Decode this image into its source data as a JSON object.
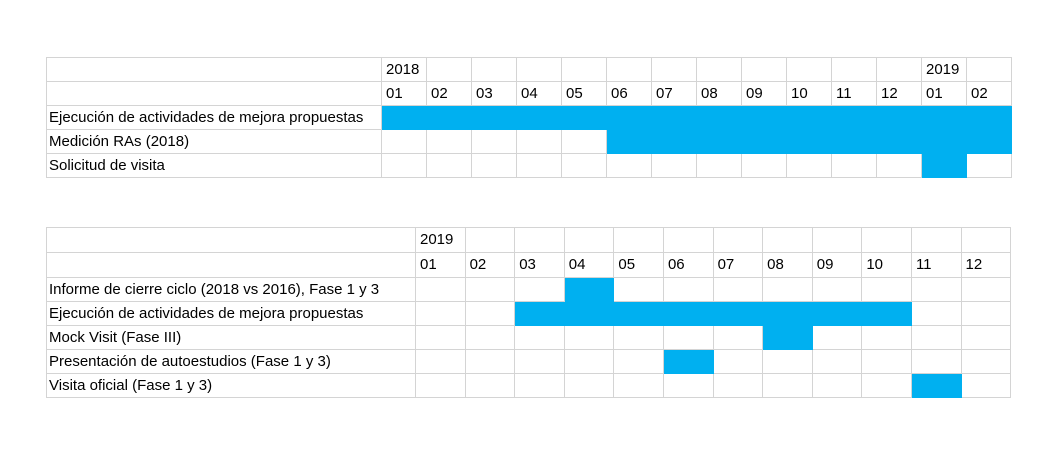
{
  "colors": {
    "bar": "#00b0f0",
    "grid": "#d4d4d4"
  },
  "chart_data": [
    {
      "type": "table",
      "years": [
        {
          "label": "2018",
          "col": 0
        },
        {
          "label": "2019",
          "col": 12
        }
      ],
      "months": [
        "01",
        "02",
        "03",
        "04",
        "05",
        "06",
        "07",
        "08",
        "09",
        "10",
        "11",
        "12",
        "01",
        "02"
      ],
      "tasks": [
        {
          "name": "Ejecución de actividades de mejora propuestas",
          "start": 0,
          "end": 13
        },
        {
          "name": "Medición RAs (2018)",
          "start": 5,
          "end": 13
        },
        {
          "name": "Solicitud de visita",
          "start": 12,
          "end": 12
        }
      ]
    },
    {
      "type": "table",
      "years": [
        {
          "label": "2019",
          "col": 0
        }
      ],
      "months": [
        "01",
        "02",
        "03",
        "04",
        "05",
        "06",
        "07",
        "08",
        "09",
        "10",
        "11",
        "12"
      ],
      "tasks": [
        {
          "name": "Informe de cierre ciclo (2018 vs 2016), Fase 1 y 3",
          "start": 3,
          "end": 3
        },
        {
          "name": "Ejecución de actividades de mejora propuestas",
          "start": 2,
          "end": 9
        },
        {
          "name": "Mock Visit (Fase III)",
          "start": 7,
          "end": 7
        },
        {
          "name": "Presentación de autoestudios (Fase 1 y 3)",
          "start": 5,
          "end": 5
        },
        {
          "name": "Visita oficial (Fase 1 y 3)",
          "start": 10,
          "end": 10
        }
      ]
    }
  ]
}
